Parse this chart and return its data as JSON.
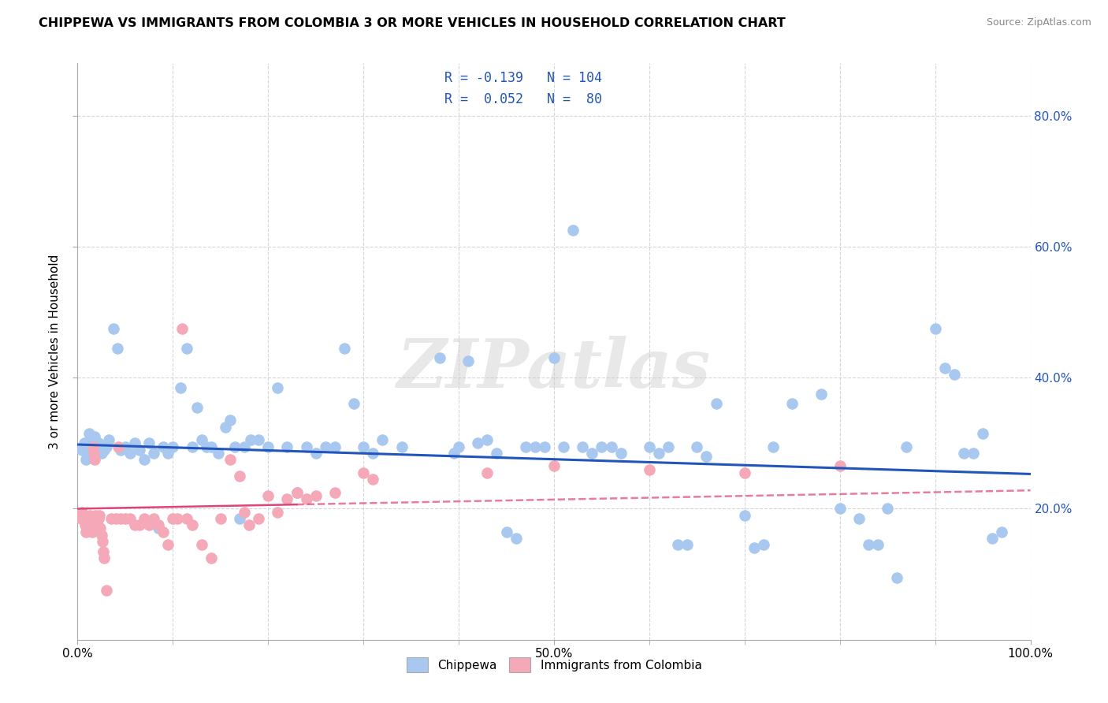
{
  "title": "CHIPPEWA VS IMMIGRANTS FROM COLOMBIA 3 OR MORE VEHICLES IN HOUSEHOLD CORRELATION CHART",
  "source": "Source: ZipAtlas.com",
  "ylabel": "3 or more Vehicles in Household",
  "chippewa_color": "#a8c8f0",
  "colombia_color": "#f4a8b8",
  "chippewa_line_color": "#2255bb",
  "colombia_line_color": "#dd4477",
  "watermark": "ZIPatlas",
  "chippewa_intercept": 0.298,
  "chippewa_slope": -0.045,
  "colombia_intercept": 0.2,
  "colombia_slope": 0.028,
  "chippewa_points": [
    [
      0.005,
      0.29
    ],
    [
      0.007,
      0.3
    ],
    [
      0.009,
      0.275
    ],
    [
      0.01,
      0.29
    ],
    [
      0.012,
      0.315
    ],
    [
      0.014,
      0.305
    ],
    [
      0.015,
      0.295
    ],
    [
      0.016,
      0.285
    ],
    [
      0.018,
      0.31
    ],
    [
      0.02,
      0.29
    ],
    [
      0.022,
      0.3
    ],
    [
      0.025,
      0.285
    ],
    [
      0.028,
      0.29
    ],
    [
      0.03,
      0.295
    ],
    [
      0.033,
      0.305
    ],
    [
      0.038,
      0.475
    ],
    [
      0.042,
      0.445
    ],
    [
      0.045,
      0.29
    ],
    [
      0.05,
      0.295
    ],
    [
      0.055,
      0.285
    ],
    [
      0.06,
      0.3
    ],
    [
      0.065,
      0.29
    ],
    [
      0.07,
      0.275
    ],
    [
      0.075,
      0.3
    ],
    [
      0.08,
      0.285
    ],
    [
      0.085,
      0.17
    ],
    [
      0.09,
      0.295
    ],
    [
      0.095,
      0.285
    ],
    [
      0.1,
      0.295
    ],
    [
      0.108,
      0.385
    ],
    [
      0.115,
      0.445
    ],
    [
      0.12,
      0.295
    ],
    [
      0.125,
      0.355
    ],
    [
      0.13,
      0.305
    ],
    [
      0.135,
      0.295
    ],
    [
      0.14,
      0.295
    ],
    [
      0.148,
      0.285
    ],
    [
      0.155,
      0.325
    ],
    [
      0.16,
      0.335
    ],
    [
      0.165,
      0.295
    ],
    [
      0.17,
      0.185
    ],
    [
      0.175,
      0.295
    ],
    [
      0.182,
      0.305
    ],
    [
      0.19,
      0.305
    ],
    [
      0.2,
      0.295
    ],
    [
      0.21,
      0.385
    ],
    [
      0.22,
      0.295
    ],
    [
      0.23,
      0.225
    ],
    [
      0.24,
      0.295
    ],
    [
      0.25,
      0.285
    ],
    [
      0.26,
      0.295
    ],
    [
      0.27,
      0.295
    ],
    [
      0.28,
      0.445
    ],
    [
      0.29,
      0.36
    ],
    [
      0.3,
      0.295
    ],
    [
      0.31,
      0.285
    ],
    [
      0.32,
      0.305
    ],
    [
      0.34,
      0.295
    ],
    [
      0.38,
      0.43
    ],
    [
      0.395,
      0.285
    ],
    [
      0.4,
      0.295
    ],
    [
      0.41,
      0.425
    ],
    [
      0.42,
      0.3
    ],
    [
      0.43,
      0.305
    ],
    [
      0.44,
      0.285
    ],
    [
      0.45,
      0.165
    ],
    [
      0.46,
      0.155
    ],
    [
      0.47,
      0.295
    ],
    [
      0.48,
      0.295
    ],
    [
      0.49,
      0.295
    ],
    [
      0.5,
      0.43
    ],
    [
      0.51,
      0.295
    ],
    [
      0.52,
      0.625
    ],
    [
      0.53,
      0.295
    ],
    [
      0.54,
      0.285
    ],
    [
      0.55,
      0.295
    ],
    [
      0.56,
      0.295
    ],
    [
      0.57,
      0.285
    ],
    [
      0.6,
      0.295
    ],
    [
      0.61,
      0.285
    ],
    [
      0.62,
      0.295
    ],
    [
      0.63,
      0.145
    ],
    [
      0.64,
      0.145
    ],
    [
      0.65,
      0.295
    ],
    [
      0.66,
      0.28
    ],
    [
      0.67,
      0.36
    ],
    [
      0.7,
      0.19
    ],
    [
      0.71,
      0.14
    ],
    [
      0.72,
      0.145
    ],
    [
      0.73,
      0.295
    ],
    [
      0.75,
      0.36
    ],
    [
      0.78,
      0.375
    ],
    [
      0.8,
      0.2
    ],
    [
      0.82,
      0.185
    ],
    [
      0.83,
      0.145
    ],
    [
      0.84,
      0.145
    ],
    [
      0.85,
      0.2
    ],
    [
      0.86,
      0.095
    ],
    [
      0.87,
      0.295
    ],
    [
      0.9,
      0.475
    ],
    [
      0.91,
      0.415
    ],
    [
      0.92,
      0.405
    ],
    [
      0.93,
      0.285
    ],
    [
      0.94,
      0.285
    ],
    [
      0.95,
      0.315
    ],
    [
      0.96,
      0.155
    ],
    [
      0.97,
      0.165
    ]
  ],
  "colombia_points": [
    [
      0.003,
      0.19
    ],
    [
      0.004,
      0.185
    ],
    [
      0.005,
      0.195
    ],
    [
      0.006,
      0.185
    ],
    [
      0.007,
      0.19
    ],
    [
      0.008,
      0.175
    ],
    [
      0.009,
      0.165
    ],
    [
      0.01,
      0.175
    ],
    [
      0.011,
      0.185
    ],
    [
      0.012,
      0.18
    ],
    [
      0.013,
      0.19
    ],
    [
      0.014,
      0.17
    ],
    [
      0.015,
      0.165
    ],
    [
      0.016,
      0.295
    ],
    [
      0.017,
      0.285
    ],
    [
      0.018,
      0.275
    ],
    [
      0.019,
      0.19
    ],
    [
      0.02,
      0.18
    ],
    [
      0.021,
      0.17
    ],
    [
      0.022,
      0.185
    ],
    [
      0.023,
      0.19
    ],
    [
      0.024,
      0.17
    ],
    [
      0.025,
      0.16
    ],
    [
      0.026,
      0.15
    ],
    [
      0.027,
      0.135
    ],
    [
      0.028,
      0.125
    ],
    [
      0.03,
      0.075
    ],
    [
      0.035,
      0.185
    ],
    [
      0.04,
      0.185
    ],
    [
      0.043,
      0.295
    ],
    [
      0.045,
      0.185
    ],
    [
      0.05,
      0.185
    ],
    [
      0.055,
      0.185
    ],
    [
      0.06,
      0.175
    ],
    [
      0.065,
      0.175
    ],
    [
      0.07,
      0.185
    ],
    [
      0.075,
      0.175
    ],
    [
      0.08,
      0.185
    ],
    [
      0.085,
      0.175
    ],
    [
      0.09,
      0.165
    ],
    [
      0.095,
      0.145
    ],
    [
      0.1,
      0.185
    ],
    [
      0.105,
      0.185
    ],
    [
      0.11,
      0.475
    ],
    [
      0.115,
      0.185
    ],
    [
      0.12,
      0.175
    ],
    [
      0.13,
      0.145
    ],
    [
      0.14,
      0.125
    ],
    [
      0.15,
      0.185
    ],
    [
      0.16,
      0.275
    ],
    [
      0.17,
      0.25
    ],
    [
      0.175,
      0.195
    ],
    [
      0.18,
      0.175
    ],
    [
      0.19,
      0.185
    ],
    [
      0.2,
      0.22
    ],
    [
      0.21,
      0.195
    ],
    [
      0.22,
      0.215
    ],
    [
      0.23,
      0.225
    ],
    [
      0.24,
      0.215
    ],
    [
      0.25,
      0.22
    ],
    [
      0.27,
      0.225
    ],
    [
      0.3,
      0.255
    ],
    [
      0.31,
      0.245
    ],
    [
      0.43,
      0.255
    ],
    [
      0.5,
      0.265
    ],
    [
      0.6,
      0.26
    ],
    [
      0.7,
      0.255
    ],
    [
      0.8,
      0.265
    ]
  ]
}
